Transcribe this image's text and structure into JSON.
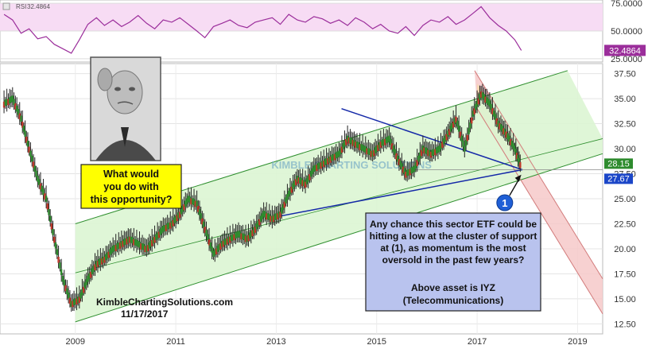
{
  "chart_data": [
    {
      "type": "line",
      "panel": "indicator",
      "ylim": [
        22,
        78
      ],
      "yticks": [
        25,
        50,
        75
      ],
      "ytick_labels": [
        "25.0000",
        "50.0000",
        "75.0000"
      ],
      "grid": true,
      "band": [
        50,
        75
      ],
      "last_value": 32.4864,
      "last_label": "32.4864",
      "top_label": "32.4864",
      "indicator_name": "RSI",
      "series": [
        {
          "color": "#9b2e9b",
          "x": [
            2007.58,
            2007.75,
            2007.92,
            2008.08,
            2008.25,
            2008.42,
            2008.58,
            2008.75,
            2008.92,
            2009.08,
            2009.25,
            2009.42,
            2009.58,
            2009.75,
            2009.92,
            2010.08,
            2010.25,
            2010.42,
            2010.58,
            2010.75,
            2010.92,
            2011.08,
            2011.25,
            2011.42,
            2011.58,
            2011.75,
            2011.92,
            2012.08,
            2012.25,
            2012.42,
            2012.58,
            2012.75,
            2012.92,
            2013.08,
            2013.25,
            2013.42,
            2013.58,
            2013.75,
            2013.92,
            2014.08,
            2014.25,
            2014.42,
            2014.58,
            2014.75,
            2014.92,
            2015.08,
            2015.25,
            2015.42,
            2015.58,
            2015.75,
            2015.92,
            2016.08,
            2016.25,
            2016.42,
            2016.58,
            2016.75,
            2016.92,
            2017.08,
            2017.25,
            2017.42,
            2017.58,
            2017.75,
            2017.88
          ],
          "values": [
            65,
            60,
            48,
            52,
            43,
            45,
            38,
            34,
            30,
            42,
            56,
            62,
            55,
            60,
            54,
            58,
            64,
            57,
            52,
            60,
            58,
            62,
            56,
            50,
            44,
            54,
            57,
            60,
            55,
            53,
            58,
            60,
            62,
            56,
            65,
            60,
            58,
            63,
            61,
            57,
            60,
            55,
            62,
            58,
            52,
            56,
            50,
            48,
            54,
            46,
            55,
            60,
            58,
            63,
            56,
            60,
            66,
            72,
            62,
            55,
            50,
            42,
            32.4864
          ]
        }
      ]
    },
    {
      "type": "line",
      "panel": "price",
      "ylim": [
        11.5,
        38.5
      ],
      "xlim": [
        2007.5,
        2019.5
      ],
      "xticks": [
        2009,
        2011,
        2013,
        2015,
        2017,
        2019
      ],
      "xtick_labels": [
        "2009",
        "2011",
        "2013",
        "2015",
        "2017",
        "2019"
      ],
      "yticks": [
        12.5,
        15,
        17.5,
        20,
        22.5,
        25,
        27.5,
        30,
        32.5,
        35,
        37.5
      ],
      "ytick_labels": [
        "12.50",
        "15.00",
        "17.50",
        "20.00",
        "22.50",
        "25.00",
        "27.50",
        "30.00",
        "32.50",
        "35.00",
        "37.50"
      ],
      "grid": true,
      "series": [
        {
          "name": "IYZ",
          "color": "#222222",
          "x": [
            2007.58,
            2007.75,
            2007.92,
            2008.08,
            2008.25,
            2008.42,
            2008.58,
            2008.75,
            2008.92,
            2009.08,
            2009.25,
            2009.42,
            2009.58,
            2009.75,
            2009.92,
            2010.08,
            2010.25,
            2010.42,
            2010.58,
            2010.75,
            2010.92,
            2011.08,
            2011.25,
            2011.42,
            2011.58,
            2011.75,
            2011.92,
            2012.08,
            2012.25,
            2012.42,
            2012.58,
            2012.75,
            2012.92,
            2013.08,
            2013.25,
            2013.42,
            2013.58,
            2013.75,
            2013.92,
            2014.08,
            2014.25,
            2014.42,
            2014.58,
            2014.75,
            2014.92,
            2015.08,
            2015.25,
            2015.42,
            2015.58,
            2015.75,
            2015.92,
            2016.08,
            2016.25,
            2016.42,
            2016.58,
            2016.75,
            2016.92,
            2017.08,
            2017.25,
            2017.42,
            2017.58,
            2017.75,
            2017.88
          ],
          "values": [
            34.5,
            35,
            33,
            30,
            27,
            25,
            21,
            17,
            14.5,
            15,
            17,
            18.5,
            19,
            20,
            20.5,
            21,
            20.5,
            20,
            21,
            22,
            22.5,
            23.5,
            25,
            24.5,
            22,
            19.5,
            20.5,
            21,
            21.5,
            21,
            22,
            23.5,
            23,
            23.5,
            25.5,
            27,
            26.5,
            28,
            28.5,
            29,
            29.5,
            31,
            30.5,
            30,
            29.5,
            30.5,
            31,
            29,
            27.5,
            28,
            30,
            29.5,
            30,
            31.5,
            33,
            30,
            33.5,
            35.5,
            34.5,
            32.5,
            31.5,
            30,
            28.15
          ]
        }
      ],
      "price_labels": [
        "28.15",
        "27.67"
      ],
      "watermark": "KIMBLE CHARTING SOLUTIONS",
      "annotations": {
        "marker": "1",
        "question": [
          "What would",
          "you do with",
          "this opportunity?"
        ],
        "note": [
          "Any chance this sector ETF could be",
          "hitting a low at the cluster of support",
          "at (1), as momentum is the most",
          "oversold in the past few years?",
          "",
          "Above asset is IYZ",
          "(Telecommunications)"
        ],
        "credit": "KimbleChartingSolutions.com",
        "date": "11/17/2017"
      }
    }
  ],
  "colors": {
    "rsi": "#9b2e9b",
    "rsi_band": "#f7dcf4",
    "channel_fill": "#dcf5d3",
    "channel_line": "#2f8f2f",
    "down_fill": "#f6c9c9",
    "down_inner": "#f5d8a8",
    "blue_line": "#1428a8",
    "marker": "#1f5fd6",
    "question_bg": "#ffff00",
    "note_bg": "#b9c3ee",
    "label_green": "#2e8b2e",
    "label_blue": "#1b46c8"
  }
}
